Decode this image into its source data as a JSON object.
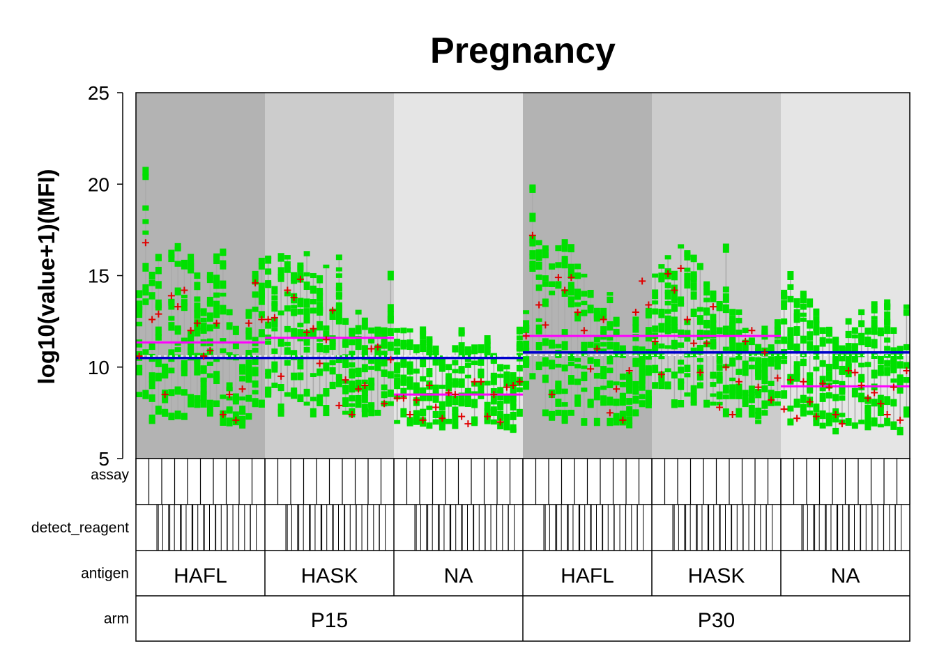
{
  "chart_data": {
    "type": "scatter",
    "title": "Pregnancy",
    "ylabel": "log10(value+1)(MFI)",
    "xlabel": "",
    "ylim": [
      5,
      25
    ],
    "yticks": [
      5,
      10,
      15,
      20,
      25
    ],
    "grid": false,
    "legend": "none",
    "n_columns": 60,
    "columns_per_antigen_group": 10,
    "panel_rows": [
      "assay",
      "detect_reagent",
      "antigen",
      "arm"
    ],
    "antigen_groups": [
      {
        "label": "HAFL",
        "arm": "P15",
        "bg": "#b3b3b3"
      },
      {
        "label": "HASK",
        "arm": "P15",
        "bg": "#cccccc"
      },
      {
        "label": "NA",
        "arm": "P15",
        "bg": "#e5e5e5"
      },
      {
        "label": "HAFL",
        "arm": "P30",
        "bg": "#b3b3b3"
      },
      {
        "label": "HASK",
        "arm": "P30",
        "bg": "#cccccc"
      },
      {
        "label": "NA",
        "arm": "P30",
        "bg": "#e5e5e5"
      }
    ],
    "arms": [
      "P15",
      "P30"
    ],
    "colors": {
      "points": "#00e000",
      "mean_marker": "#e00000",
      "antigen_mean_line": "#ff00ff",
      "arm_mean_line": "#0000cc",
      "whisker": "#aaaaaa"
    },
    "column_ranges": [
      [
        8.5,
        14.0
      ],
      [
        8.5,
        20.7
      ],
      [
        7.0,
        15.0
      ],
      [
        7.5,
        16.0
      ],
      [
        7.5,
        10.0
      ],
      [
        7.3,
        16.2
      ],
      [
        7.3,
        16.6
      ],
      [
        7.3,
        15.6
      ],
      [
        8.0,
        16.0
      ],
      [
        8.0,
        15.0
      ],
      [
        8.0,
        13.0
      ],
      [
        7.5,
        15.0
      ],
      [
        8.0,
        16.0
      ],
      [
        7.0,
        16.3
      ],
      [
        7.0,
        13.0
      ],
      [
        7.0,
        12.0
      ],
      [
        6.8,
        10.0
      ],
      [
        7.3,
        13.0
      ],
      [
        8.0,
        15.0
      ],
      [
        8.0,
        15.8
      ],
      [
        8.5,
        16.0
      ],
      [
        9.0,
        14.2
      ],
      [
        7.5,
        16.0
      ],
      [
        8.5,
        16.0
      ],
      [
        8.5,
        15.0
      ],
      [
        8.3,
        15.5
      ],
      [
        8.0,
        16.2
      ],
      [
        7.5,
        15.0
      ],
      [
        8.0,
        14.8
      ],
      [
        7.5,
        15.5
      ],
      [
        9.0,
        13.0
      ],
      [
        9.0,
        16.0
      ],
      [
        7.5,
        12.5
      ],
      [
        7.5,
        12.0
      ],
      [
        8.0,
        13.0
      ],
      [
        7.5,
        12.5
      ],
      [
        7.5,
        12.0
      ],
      [
        7.5,
        12.0
      ],
      [
        8.0,
        12.0
      ],
      [
        8.0,
        15.0
      ],
      [
        7.0,
        12.0
      ],
      [
        7.5,
        12.0
      ],
      [
        7.0,
        12.0
      ],
      [
        7.0,
        11.0
      ],
      [
        7.0,
        12.0
      ],
      [
        6.8,
        11.5
      ],
      [
        7.0,
        11.0
      ],
      [
        6.8,
        10.5
      ],
      [
        7.0,
        10.0
      ],
      [
        6.8,
        11.0
      ],
      [
        8.0,
        12.0
      ],
      [
        8.0,
        11.0
      ],
      [
        7.0,
        11.0
      ],
      [
        8.5,
        11.0
      ],
      [
        7.0,
        11.5
      ],
      [
        7.0,
        10.5
      ],
      [
        6.8,
        10.0
      ],
      [
        6.8,
        10.0
      ],
      [
        6.5,
        9.5
      ],
      [
        7.5,
        12.0
      ]
    ],
    "column_ranges_p30": [
      [
        9.0,
        13.0
      ],
      [
        9.5,
        19.8
      ],
      [
        10.0,
        16.8
      ],
      [
        7.5,
        16.5
      ],
      [
        7.3,
        15.5
      ],
      [
        7.5,
        16.5
      ],
      [
        7.0,
        16.8
      ],
      [
        7.5,
        16.5
      ],
      [
        8.0,
        15.5
      ],
      [
        7.0,
        15.0
      ],
      [
        8.0,
        14.0
      ],
      [
        7.0,
        13.0
      ],
      [
        8.0,
        13.0
      ],
      [
        7.0,
        14.0
      ],
      [
        7.0,
        12.5
      ],
      [
        7.0,
        11.0
      ],
      [
        6.8,
        9.5
      ],
      [
        7.5,
        12.5
      ],
      [
        8.0,
        11.0
      ],
      [
        8.0,
        13.0
      ],
      [
        9.0,
        15.0
      ],
      [
        9.0,
        15.5
      ],
      [
        9.0,
        16.0
      ],
      [
        8.0,
        15.0
      ],
      [
        8.0,
        16.6
      ],
      [
        8.5,
        16.2
      ],
      [
        8.0,
        16.0
      ],
      [
        9.0,
        15.5
      ],
      [
        8.0,
        14.5
      ],
      [
        8.0,
        14.0
      ],
      [
        8.0,
        13.5
      ],
      [
        7.5,
        16.5
      ],
      [
        8.5,
        13.0
      ],
      [
        7.5,
        13.0
      ],
      [
        8.0,
        12.0
      ],
      [
        7.5,
        11.5
      ],
      [
        7.0,
        11.0
      ],
      [
        7.5,
        12.0
      ],
      [
        8.0,
        11.0
      ],
      [
        8.0,
        12.5
      ],
      [
        8.5,
        14.0
      ],
      [
        7.0,
        15.0
      ],
      [
        8.0,
        13.5
      ],
      [
        7.5,
        14.0
      ],
      [
        7.5,
        13.5
      ],
      [
        7.0,
        13.0
      ],
      [
        6.8,
        12.0
      ],
      [
        7.0,
        12.0
      ],
      [
        6.5,
        11.5
      ],
      [
        7.0,
        11.0
      ],
      [
        7.0,
        12.5
      ],
      [
        6.8,
        12.0
      ],
      [
        7.0,
        13.0
      ],
      [
        6.8,
        12.0
      ],
      [
        7.0,
        13.5
      ],
      [
        6.8,
        12.0
      ],
      [
        7.0,
        13.5
      ],
      [
        6.8,
        12.0
      ],
      [
        6.5,
        11.0
      ],
      [
        7.5,
        13.3
      ]
    ],
    "column_means": [
      10.6,
      16.8,
      12.6,
      12.9,
      8.5,
      13.9,
      13.3,
      14.2,
      12.0,
      12.4,
      10.6,
      10.9,
      12.4,
      7.4,
      8.5,
      7.1,
      8.8,
      12.4,
      14.6,
      12.6,
      12.6,
      12.7,
      9.5,
      14.2,
      13.8,
      14.8,
      11.9,
      12.1,
      10.2,
      11.5,
      13.1,
      7.9,
      9.3,
      7.4,
      8.8,
      9.0,
      11.0,
      11.1,
      8.0,
      10.4,
      8.3,
      8.3,
      7.4,
      8.2,
      7.1,
      9.0,
      7.8,
      7.2,
      8.6,
      8.5,
      7.3,
      6.9,
      9.2,
      9.2,
      7.3,
      8.5,
      7.0,
      8.9,
      9.0,
      9.2
    ],
    "column_means_p30": [
      11.7,
      17.2,
      13.4,
      12.3,
      8.5,
      14.9,
      14.2,
      14.9,
      13.0,
      12.0,
      9.9,
      11.0,
      12.6,
      7.5,
      8.8,
      7.1,
      9.8,
      13.0,
      14.7,
      13.4,
      11.4,
      9.6,
      15.1,
      14.2,
      15.4,
      12.6,
      11.3,
      9.7,
      11.3,
      13.3,
      7.8,
      10.0,
      7.4,
      9.2,
      11.4,
      12.0,
      8.9,
      10.8,
      8.2,
      9.4,
      7.7,
      9.3,
      7.2,
      9.2,
      8.1,
      7.3,
      9.1,
      8.9,
      7.4,
      6.9,
      9.8,
      9.7,
      9.0,
      8.3,
      8.6,
      8.0,
      7.4,
      8.9,
      7.1,
      9.8
    ],
    "antigen_means": [
      11.35,
      11.6,
      8.5,
      11.7,
      11.7,
      8.95
    ],
    "antigen_means_extra": 11.75,
    "arm_means": [
      10.5,
      10.8
    ],
    "arm_overall_dotted": [
      10.6,
      10.65
    ]
  }
}
